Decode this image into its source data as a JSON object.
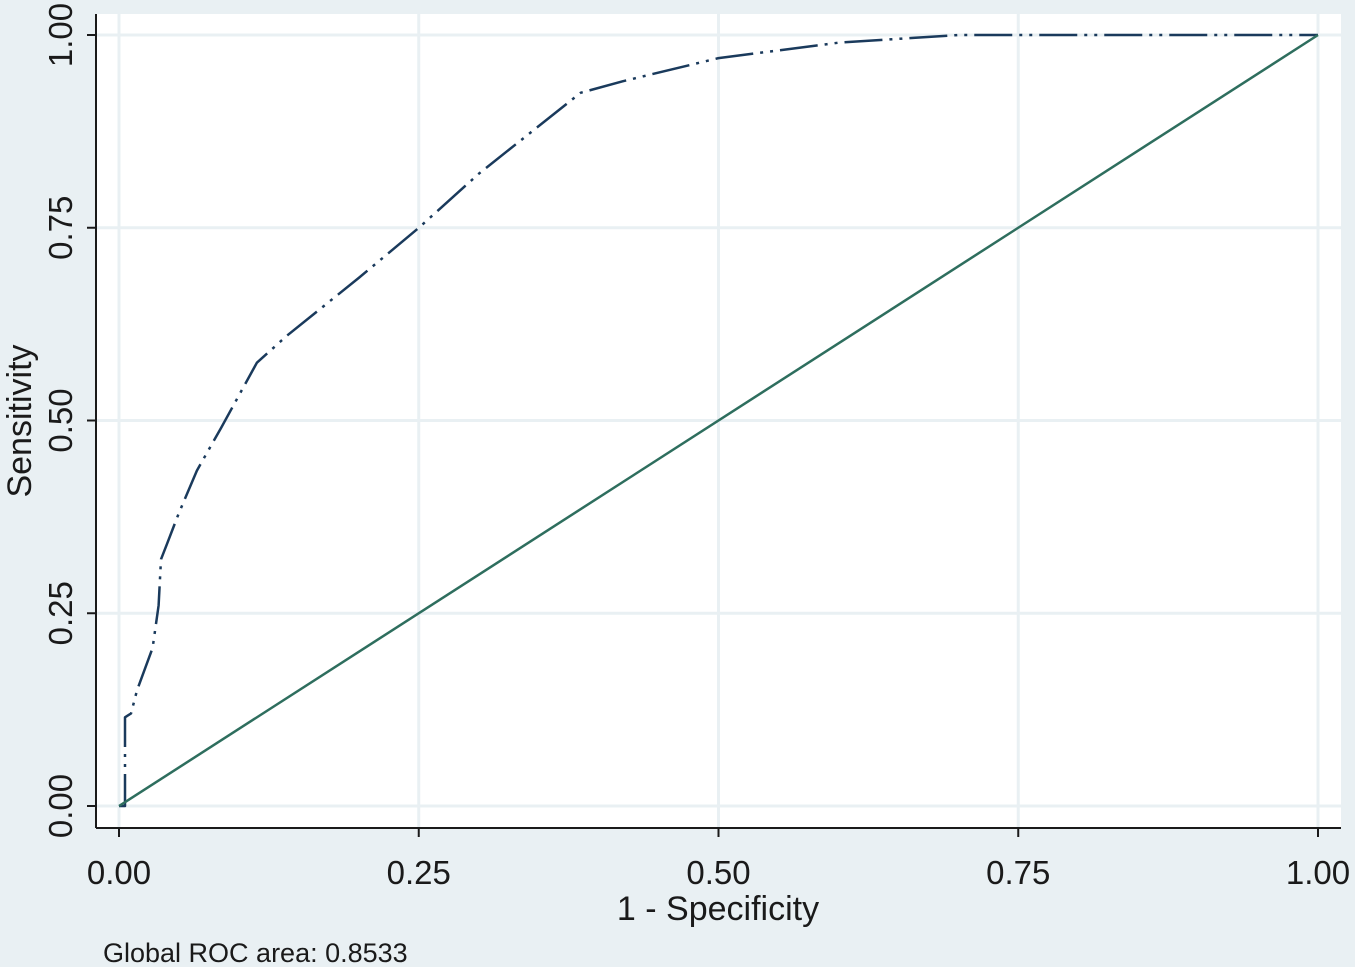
{
  "chart_data": {
    "type": "line",
    "title": "",
    "xlabel": "1 - Specificity",
    "ylabel": "Sensitivity",
    "xlim": [
      0,
      1
    ],
    "ylim": [
      0,
      1
    ],
    "x_ticks": [
      0,
      0.25,
      0.5,
      0.75,
      1
    ],
    "y_ticks": [
      0,
      0.25,
      0.5,
      0.75,
      1
    ],
    "x_tick_labels": [
      "0.00",
      "0.25",
      "0.50",
      "0.75",
      "1.00"
    ],
    "y_tick_labels": [
      "0.00",
      "0.25",
      "0.50",
      "0.75",
      "1.00"
    ],
    "grid": true,
    "legend": "none",
    "series": [
      {
        "style": "dash-dot-dot",
        "color": "#1a3a5c",
        "x": [
          0.0,
          0.005,
          0.005,
          0.01,
          0.015,
          0.028,
          0.033,
          0.035,
          0.04,
          0.05,
          0.065,
          0.085,
          0.115,
          0.14,
          0.2,
          0.25,
          0.3,
          0.385,
          0.42,
          0.5,
          0.55,
          0.6,
          0.7,
          0.8,
          0.9,
          1.0
        ],
        "y": [
          0.0,
          0.0,
          0.115,
          0.12,
          0.15,
          0.205,
          0.26,
          0.32,
          0.34,
          0.38,
          0.435,
          0.49,
          0.575,
          0.61,
          0.685,
          0.75,
          0.82,
          0.925,
          0.94,
          0.97,
          0.98,
          0.99,
          1.0,
          1.0,
          1.0,
          1.0
        ]
      },
      {
        "style": "solid",
        "color": "#2e6e5e",
        "x": [
          0,
          1
        ],
        "y": [
          0,
          1
        ]
      }
    ],
    "annotations": [
      "Global ROC area: 0.8533"
    ]
  },
  "colors": {
    "background": "#e9f0f3",
    "plot_area": "#ffffff",
    "grid": "#e9f0f3",
    "axis": "#1a1a1a"
  }
}
